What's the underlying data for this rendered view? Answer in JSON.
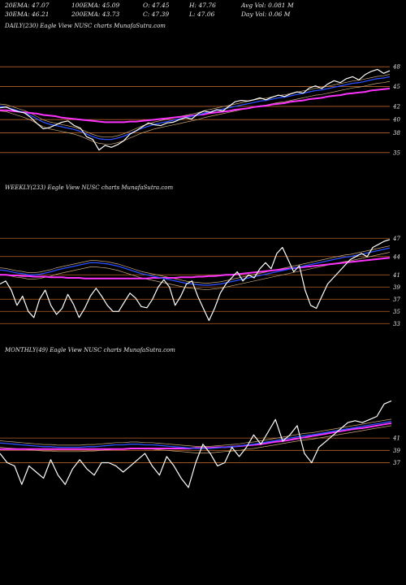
{
  "header": {
    "row1": [
      "20EMA: 47.07",
      "100EMA: 45.09",
      "O: 47.45",
      "H: 47.76",
      "Avg Vol: 0.081 M"
    ],
    "row2": [
      "30EMA: 46.21",
      "200EMA: 43.73",
      "C: 47.39",
      "L: 47.06",
      "Day Vol: 0.06  M"
    ]
  },
  "panels": {
    "daily": {
      "label": "DAILY(230) Eagle  View  NUSC charts MunafaSutra.com",
      "ticks": [
        "48",
        "45",
        "42",
        "40",
        "38",
        "35"
      ]
    },
    "weekly": {
      "label": "WEEKLY(233) Eagle  View  NUSC charts MunafaSutra.com",
      "ticks": [
        "47",
        "44",
        "41",
        "39",
        "37",
        "35",
        "33"
      ]
    },
    "monthly": {
      "label": "MONTHLY(49) Eagle  View  NUSC charts MunafaSutra.com",
      "ticks": [
        "41",
        "39",
        "37"
      ]
    }
  },
  "colors": {
    "background": "#000000",
    "price": "#ffffff",
    "ema_short": "#2a4fff",
    "ema_long": "#ff33ff",
    "guide": "#b8622a",
    "ema_tan": "#c8a878"
  },
  "chart_data": [
    {
      "type": "line",
      "title": "DAILY(230) Eagle View NUSC charts MunafaSutra.com",
      "ylim": [
        33.5,
        49.5
      ],
      "y_ticks": [
        48,
        45,
        42,
        40,
        38,
        35
      ],
      "series": [
        {
          "values": [
            41.8,
            41.9,
            41.5,
            41.2,
            41.0,
            40.3,
            39.4,
            38.6,
            38.8,
            39.2,
            39.6,
            39.8,
            39.1,
            38.7,
            37.4,
            37.0,
            35.4,
            36.1,
            35.8,
            36.2,
            36.8,
            37.8,
            38.3,
            38.9,
            39.5,
            39.2,
            39.1,
            39.5,
            39.6,
            40.0,
            40.3,
            40.1,
            40.9,
            41.3,
            41.1,
            41.5,
            41.3,
            42.0,
            42.7,
            42.9,
            42.8,
            43.0,
            43.3,
            43.0,
            43.4,
            43.7,
            43.5,
            43.9,
            44.2,
            44.0,
            44.8,
            45.1,
            44.7,
            45.4,
            45.9,
            45.6,
            46.2,
            46.5,
            46.0,
            46.8,
            47.3,
            47.6,
            47.0,
            47.4
          ]
        },
        {
          "values": [
            42.0,
            41.9,
            41.6,
            41.3,
            41.0,
            40.6,
            40.1,
            39.6,
            39.3,
            39.1,
            38.9,
            38.7,
            38.5,
            38.2,
            37.8,
            37.4,
            37.1,
            37.0,
            37.0,
            37.2,
            37.5,
            37.9,
            38.3,
            38.7,
            39.0,
            39.3,
            39.5,
            39.7,
            39.9,
            40.1,
            40.3,
            40.5,
            40.7,
            41.0,
            41.2,
            41.4,
            41.6,
            41.8,
            42.0,
            42.2,
            42.4,
            42.6,
            42.8,
            42.9,
            43.1,
            43.3,
            43.4,
            43.6,
            43.8,
            44.0,
            44.2,
            44.4,
            44.5,
            44.7,
            44.9,
            45.1,
            45.3,
            45.5,
            45.6,
            45.8,
            46.0,
            46.2,
            46.3,
            46.5
          ]
        },
        {
          "values": [
            41.4,
            41.4,
            41.3,
            41.2,
            41.1,
            41.0,
            40.9,
            40.7,
            40.6,
            40.5,
            40.3,
            40.2,
            40.1,
            40.0,
            39.9,
            39.8,
            39.7,
            39.6,
            39.6,
            39.6,
            39.6,
            39.7,
            39.7,
            39.8,
            39.9,
            40.0,
            40.1,
            40.2,
            40.3,
            40.4,
            40.5,
            40.6,
            40.7,
            40.8,
            41.0,
            41.1,
            41.2,
            41.3,
            41.5,
            41.6,
            41.7,
            41.9,
            42.0,
            42.1,
            42.3,
            42.4,
            42.5,
            42.7,
            42.8,
            42.9,
            43.1,
            43.2,
            43.3,
            43.5,
            43.6,
            43.7,
            43.9,
            44.0,
            44.1,
            44.2,
            44.4,
            44.5,
            44.6,
            44.7
          ]
        }
      ]
    },
    {
      "type": "line",
      "title": "WEEKLY(233) Eagle View NUSC charts MunafaSutra.com",
      "ylim": [
        32.5,
        48.5
      ],
      "y_ticks": [
        47,
        44,
        41,
        39,
        37,
        35,
        33
      ],
      "series": [
        {
          "values": [
            39.5,
            40.0,
            38.5,
            36.0,
            37.5,
            35.0,
            34.0,
            37.0,
            38.5,
            36.0,
            34.5,
            35.5,
            37.8,
            36.2,
            34.0,
            35.5,
            37.5,
            38.8,
            37.5,
            36.0,
            35.0,
            35.0,
            36.5,
            38.0,
            37.2,
            35.8,
            35.6,
            37.0,
            39.0,
            40.2,
            39.0,
            36.0,
            37.5,
            39.5,
            40.0,
            37.5,
            35.5,
            33.5,
            35.5,
            38.0,
            39.5,
            40.5,
            41.5,
            40.0,
            41.0,
            40.5,
            42.0,
            43.0,
            42.0,
            44.5,
            45.5,
            43.5,
            41.5,
            42.5,
            38.5,
            36.0,
            35.5,
            37.5,
            39.5,
            40.5,
            41.5,
            42.5,
            43.5,
            44.0,
            44.5,
            44.0,
            45.5,
            46.0,
            46.5,
            46.8
          ]
        },
        {
          "values": [
            41.8,
            41.7,
            41.5,
            41.3,
            41.2,
            41.0,
            41.0,
            41.1,
            41.3,
            41.5,
            41.8,
            42.0,
            42.2,
            42.4,
            42.6,
            42.8,
            43.0,
            43.0,
            42.9,
            42.8,
            42.6,
            42.4,
            42.1,
            41.8,
            41.5,
            41.2,
            41.0,
            40.8,
            40.6,
            40.4,
            40.2,
            40.0,
            39.8,
            39.6,
            39.5,
            39.4,
            39.3,
            39.3,
            39.4,
            39.5,
            39.7,
            39.9,
            40.1,
            40.3,
            40.5,
            40.7,
            40.9,
            41.1,
            41.3,
            41.5,
            41.7,
            41.9,
            42.1,
            42.3,
            42.5,
            42.7,
            42.9,
            43.1,
            43.3,
            43.5,
            43.7,
            43.9,
            44.0,
            44.2,
            44.4,
            44.6,
            44.8,
            45.0,
            45.2,
            45.4
          ]
        },
        {
          "values": [
            41.0,
            41.0,
            40.9,
            40.9,
            40.8,
            40.8,
            40.7,
            40.7,
            40.7,
            40.6,
            40.6,
            40.6,
            40.5,
            40.5,
            40.5,
            40.4,
            40.4,
            40.4,
            40.4,
            40.4,
            40.4,
            40.4,
            40.4,
            40.4,
            40.4,
            40.4,
            40.4,
            40.5,
            40.5,
            40.5,
            40.5,
            40.5,
            40.6,
            40.6,
            40.6,
            40.7,
            40.7,
            40.8,
            40.8,
            40.9,
            41.0,
            41.0,
            41.1,
            41.2,
            41.3,
            41.4,
            41.5,
            41.6,
            41.7,
            41.8,
            41.9,
            42.0,
            42.1,
            42.2,
            42.3,
            42.4,
            42.5,
            42.6,
            42.7,
            42.8,
            42.9,
            43.0,
            43.1,
            43.2,
            43.3,
            43.4,
            43.5,
            43.6,
            43.7,
            43.8
          ]
        }
      ]
    },
    {
      "type": "line",
      "title": "MONTHLY(49) Eagle View NUSC charts MunafaSutra.com",
      "ylim": [
        33.0,
        48.5
      ],
      "y_ticks": [
        41,
        39,
        37
      ],
      "series": [
        {
          "values": [
            38.5,
            37.0,
            36.5,
            33.5,
            36.5,
            35.5,
            34.5,
            37.5,
            35.0,
            33.5,
            36.0,
            37.5,
            36.0,
            35.0,
            37.0,
            37.0,
            36.5,
            35.5,
            36.5,
            37.5,
            38.5,
            36.5,
            35.0,
            38.0,
            36.5,
            34.5,
            33.0,
            37.0,
            40.0,
            38.5,
            36.5,
            37.0,
            39.5,
            38.0,
            39.5,
            41.5,
            40.0,
            42.0,
            44.0,
            40.5,
            41.5,
            43.0,
            38.5,
            37.0,
            39.5,
            40.5,
            41.5,
            42.5,
            43.5,
            43.8,
            43.5,
            44.0,
            44.5,
            46.5,
            47.0
          ]
        },
        {
          "values": [
            40.2,
            40.1,
            40.0,
            39.9,
            39.8,
            39.7,
            39.6,
            39.6,
            39.5,
            39.5,
            39.5,
            39.5,
            39.6,
            39.6,
            39.7,
            39.8,
            39.9,
            39.9,
            40.0,
            40.0,
            39.9,
            39.9,
            39.8,
            39.7,
            39.6,
            39.5,
            39.4,
            39.3,
            39.3,
            39.3,
            39.4,
            39.5,
            39.6,
            39.7,
            39.9,
            40.0,
            40.2,
            40.4,
            40.6,
            40.8,
            41.0,
            41.2,
            41.4,
            41.5,
            41.7,
            41.9,
            42.1,
            42.3,
            42.5,
            42.7,
            42.9,
            43.1,
            43.3,
            43.5,
            43.7
          ]
        },
        {
          "values": [
            39.2,
            39.2,
            39.2,
            39.2,
            39.2,
            39.2,
            39.2,
            39.2,
            39.2,
            39.2,
            39.2,
            39.2,
            39.2,
            39.2,
            39.2,
            39.2,
            39.2,
            39.2,
            39.3,
            39.3,
            39.3,
            39.3,
            39.3,
            39.3,
            39.3,
            39.3,
            39.3,
            39.4,
            39.4,
            39.4,
            39.5,
            39.5,
            39.6,
            39.7,
            39.8,
            39.9,
            40.0,
            40.2,
            40.4,
            40.5,
            40.7,
            40.9,
            41.1,
            41.3,
            41.5,
            41.7,
            41.9,
            42.1,
            42.3,
            42.5,
            42.6,
            42.8,
            43.0,
            43.2,
            43.4
          ]
        }
      ]
    }
  ]
}
